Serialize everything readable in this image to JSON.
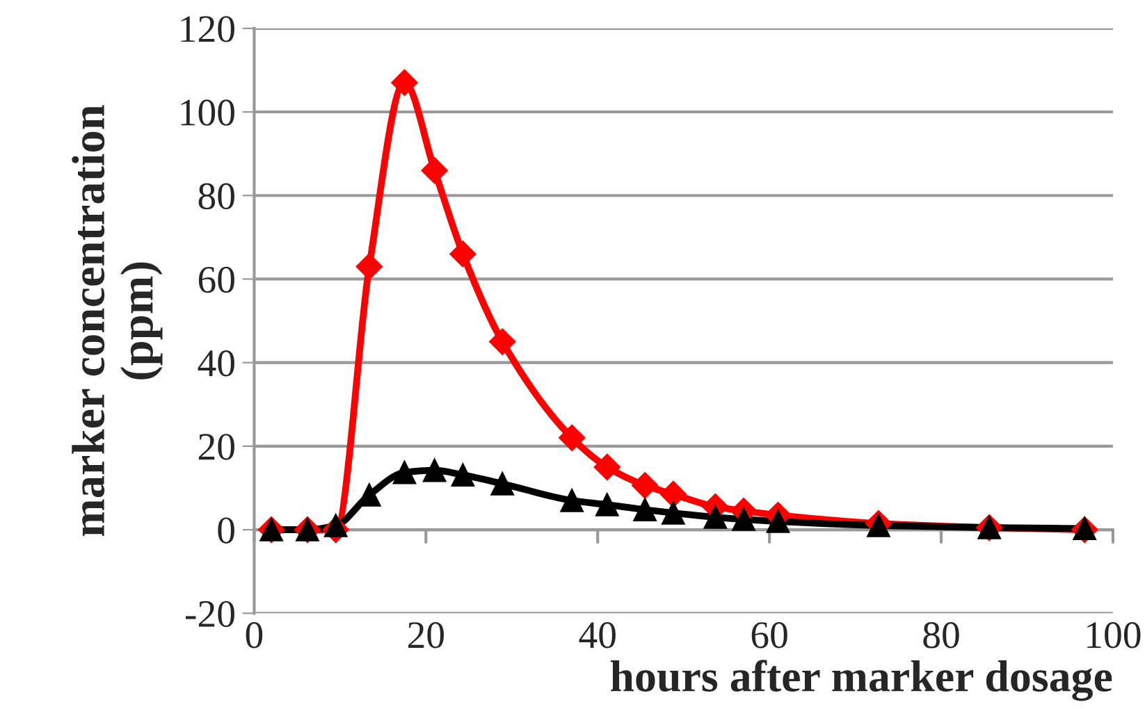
{
  "chart_data": {
    "type": "line",
    "xlabel": "hours after marker dosage",
    "ylabel": "marker concentration\n(ppm)",
    "xlim": [
      0,
      100
    ],
    "xticks": [
      0,
      20,
      40,
      60,
      80,
      100
    ],
    "ylim": [
      -20,
      120
    ],
    "yticks": [
      -20,
      0,
      20,
      40,
      60,
      80,
      100,
      120
    ],
    "grid": "y",
    "legend": false,
    "series": [
      {
        "color": "#ff0000",
        "marker": "diamond",
        "x": [
          2,
          6.2,
          9.5,
          13.4,
          17.5,
          21,
          24.3,
          28.9,
          37,
          41.1,
          45.5,
          48.8,
          53.7,
          57,
          61,
          72.7,
          85.6,
          96.7
        ],
        "values": [
          0,
          0,
          0,
          63,
          107,
          86,
          66,
          45,
          22,
          15,
          10.6,
          8.5,
          5.5,
          4.5,
          3.5,
          1.5,
          0.5,
          0
        ]
      },
      {
        "color": "#000000",
        "marker": "triangle",
        "x": [
          2,
          6.2,
          9.5,
          13.4,
          17.5,
          21,
          24.3,
          28.9,
          37,
          41.1,
          45.5,
          48.8,
          53.7,
          57,
          61,
          72.7,
          85.6,
          96.7
        ],
        "values": [
          0,
          0,
          1,
          8.3,
          13.7,
          14.2,
          13.1,
          11,
          7,
          6,
          4.8,
          4,
          3,
          2.5,
          2,
          1,
          0.5,
          0.3
        ]
      }
    ]
  }
}
